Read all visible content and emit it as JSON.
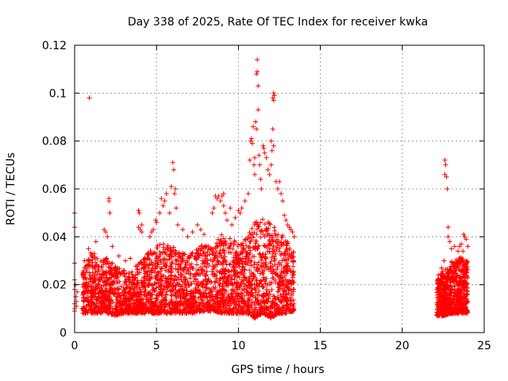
{
  "chart_data": {
    "type": "scatter",
    "title": "Day 338 of 2025, Rate Of TEC Index for receiver kwka",
    "xlabel": "GPS time / hours",
    "ylabel": "ROTI / TECUs",
    "xlim": [
      0,
      25
    ],
    "ylim": [
      0,
      0.12
    ],
    "xticks": [
      0,
      5,
      10,
      15,
      20,
      25
    ],
    "yticks": [
      0,
      0.02,
      0.04,
      0.06,
      0.08,
      0.1,
      0.12
    ],
    "xtick_labels": [
      "0",
      "5",
      "10",
      "15",
      "20",
      "25"
    ],
    "ytick_labels": [
      "0",
      "0.02",
      "0.04",
      "0.06",
      "0.08",
      "0.1",
      "0.12"
    ],
    "grid": true,
    "marker": "+",
    "color": "#ff0000",
    "envelope": {
      "x": [
        0.5,
        1.0,
        1.5,
        2.0,
        2.5,
        3.0,
        3.5,
        4.0,
        4.5,
        5.0,
        5.5,
        6.0,
        6.5,
        7.0,
        7.5,
        8.0,
        8.5,
        9.0,
        9.5,
        10.0,
        10.5,
        11.0,
        11.5,
        12.0,
        12.5,
        13.0,
        13.4
      ],
      "low": [
        0.008,
        0.008,
        0.008,
        0.008,
        0.007,
        0.008,
        0.008,
        0.008,
        0.008,
        0.008,
        0.008,
        0.008,
        0.008,
        0.008,
        0.008,
        0.009,
        0.009,
        0.008,
        0.008,
        0.008,
        0.008,
        0.006,
        0.008,
        0.006,
        0.008,
        0.008,
        0.009
      ],
      "high": [
        0.026,
        0.034,
        0.03,
        0.032,
        0.028,
        0.026,
        0.026,
        0.03,
        0.034,
        0.036,
        0.038,
        0.036,
        0.034,
        0.032,
        0.036,
        0.038,
        0.036,
        0.042,
        0.04,
        0.038,
        0.04,
        0.046,
        0.048,
        0.045,
        0.043,
        0.04,
        0.034
      ]
    },
    "envelope2": {
      "x": [
        22.1,
        22.5,
        23.0,
        23.5,
        24.0
      ],
      "low": [
        0.007,
        0.007,
        0.008,
        0.008,
        0.008
      ],
      "high": [
        0.022,
        0.026,
        0.03,
        0.032,
        0.03
      ]
    },
    "points": [
      [
        0.0,
        0.05
      ],
      [
        0.0,
        0.044
      ],
      [
        0.0,
        0.029
      ],
      [
        0.0,
        0.022
      ],
      [
        0.0,
        0.018
      ],
      [
        0.0,
        0.012
      ],
      [
        0.0,
        0.01
      ],
      [
        0.0,
        0.009
      ],
      [
        0.05,
        0.02
      ],
      [
        0.08,
        0.015
      ],
      [
        0.1,
        0.011
      ],
      [
        0.1,
        0.013
      ],
      [
        0.15,
        0.017
      ],
      [
        0.45,
        0.01
      ],
      [
        0.5,
        0.02
      ],
      [
        0.55,
        0.025
      ],
      [
        0.6,
        0.03
      ],
      [
        0.9,
        0.098
      ],
      [
        0.85,
        0.035
      ],
      [
        1.2,
        0.033
      ],
      [
        1.3,
        0.038
      ],
      [
        1.8,
        0.043
      ],
      [
        1.9,
        0.042
      ],
      [
        2.0,
        0.04
      ],
      [
        2.1,
        0.056
      ],
      [
        2.1,
        0.055
      ],
      [
        2.15,
        0.05
      ],
      [
        2.3,
        0.036
      ],
      [
        2.7,
        0.032
      ],
      [
        3.1,
        0.03
      ],
      [
        3.4,
        0.031
      ],
      [
        3.9,
        0.051
      ],
      [
        3.95,
        0.05
      ],
      [
        3.9,
        0.044
      ],
      [
        4.0,
        0.043
      ],
      [
        4.1,
        0.042
      ],
      [
        4.1,
        0.045
      ],
      [
        4.6,
        0.04
      ],
      [
        4.7,
        0.042
      ],
      [
        4.8,
        0.043
      ],
      [
        4.95,
        0.047
      ],
      [
        5.0,
        0.046
      ],
      [
        5.2,
        0.05
      ],
      [
        5.3,
        0.056
      ],
      [
        5.4,
        0.053
      ],
      [
        5.5,
        0.055
      ],
      [
        5.6,
        0.058
      ],
      [
        5.8,
        0.05
      ],
      [
        5.9,
        0.061
      ],
      [
        6.0,
        0.071
      ],
      [
        6.05,
        0.068
      ],
      [
        6.1,
        0.058
      ],
      [
        6.15,
        0.06
      ],
      [
        6.2,
        0.052
      ],
      [
        6.3,
        0.045
      ],
      [
        6.6,
        0.043
      ],
      [
        6.9,
        0.04
      ],
      [
        7.2,
        0.042
      ],
      [
        7.5,
        0.045
      ],
      [
        7.7,
        0.043
      ],
      [
        7.9,
        0.041
      ],
      [
        8.4,
        0.05
      ],
      [
        8.5,
        0.052
      ],
      [
        8.6,
        0.057
      ],
      [
        8.7,
        0.056
      ],
      [
        8.8,
        0.057
      ],
      [
        8.9,
        0.055
      ],
      [
        9.0,
        0.057
      ],
      [
        9.1,
        0.058
      ],
      [
        9.1,
        0.053
      ],
      [
        9.2,
        0.05
      ],
      [
        9.3,
        0.047
      ],
      [
        9.5,
        0.052
      ],
      [
        9.6,
        0.045
      ],
      [
        9.8,
        0.048
      ],
      [
        10.0,
        0.051
      ],
      [
        10.1,
        0.05
      ],
      [
        10.2,
        0.052
      ],
      [
        10.4,
        0.055
      ],
      [
        10.6,
        0.058
      ],
      [
        10.7,
        0.072
      ],
      [
        10.75,
        0.08
      ],
      [
        10.8,
        0.081
      ],
      [
        10.85,
        0.079
      ],
      [
        10.9,
        0.086
      ],
      [
        10.95,
        0.07
      ],
      [
        11.0,
        0.073
      ],
      [
        11.0,
        0.066
      ],
      [
        11.05,
        0.088
      ],
      [
        11.1,
        0.085
      ],
      [
        11.1,
        0.108
      ],
      [
        11.15,
        0.109
      ],
      [
        11.15,
        0.114
      ],
      [
        11.2,
        0.103
      ],
      [
        11.2,
        0.093
      ],
      [
        11.25,
        0.074
      ],
      [
        11.3,
        0.07
      ],
      [
        11.35,
        0.064
      ],
      [
        11.4,
        0.06
      ],
      [
        11.5,
        0.078
      ],
      [
        11.55,
        0.077
      ],
      [
        11.6,
        0.075
      ],
      [
        11.7,
        0.073
      ],
      [
        11.8,
        0.068
      ],
      [
        11.9,
        0.066
      ],
      [
        12.0,
        0.07
      ],
      [
        12.0,
        0.08
      ],
      [
        12.05,
        0.076
      ],
      [
        12.1,
        0.098
      ],
      [
        12.15,
        0.1
      ],
      [
        12.15,
        0.097
      ],
      [
        12.2,
        0.099
      ],
      [
        12.1,
        0.085
      ],
      [
        12.15,
        0.078
      ],
      [
        12.3,
        0.063
      ],
      [
        12.4,
        0.06
      ],
      [
        12.5,
        0.063
      ],
      [
        12.6,
        0.058
      ],
      [
        12.7,
        0.055
      ],
      [
        12.8,
        0.049
      ],
      [
        12.9,
        0.047
      ],
      [
        13.0,
        0.045
      ],
      [
        13.1,
        0.044
      ],
      [
        13.2,
        0.043
      ],
      [
        13.3,
        0.042
      ],
      [
        13.4,
        0.04
      ],
      [
        22.2,
        0.024
      ],
      [
        22.4,
        0.027
      ],
      [
        22.55,
        0.03
      ],
      [
        22.6,
        0.072
      ],
      [
        22.65,
        0.07
      ],
      [
        22.6,
        0.066
      ],
      [
        22.7,
        0.065
      ],
      [
        22.75,
        0.06
      ],
      [
        22.8,
        0.044
      ],
      [
        22.8,
        0.04
      ],
      [
        22.9,
        0.038
      ],
      [
        23.0,
        0.035
      ],
      [
        23.2,
        0.036
      ],
      [
        23.4,
        0.034
      ],
      [
        23.6,
        0.037
      ],
      [
        23.75,
        0.041
      ],
      [
        23.8,
        0.04
      ],
      [
        23.9,
        0.039
      ],
      [
        24.0,
        0.036
      ],
      [
        23.7,
        0.034
      ],
      [
        23.5,
        0.036
      ]
    ]
  }
}
